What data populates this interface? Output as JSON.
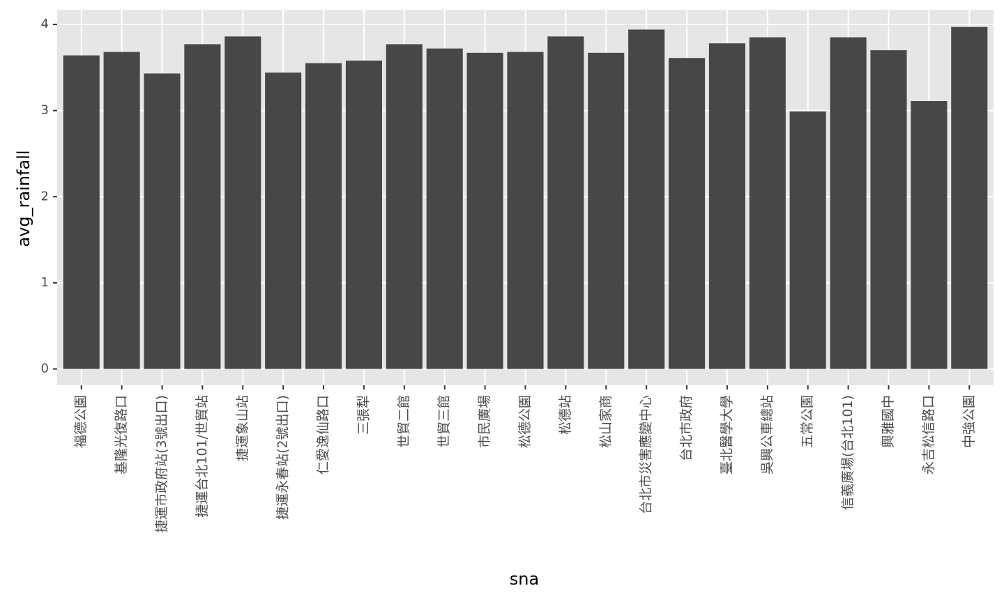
{
  "chart_data": {
    "type": "bar",
    "x_label": "sna",
    "y_label": "avg_rainfall",
    "categories": [
      "福德公園",
      "基隆光復路口",
      "捷運市政府站(3號出口)",
      "捷運台北101/世貿站",
      "捷運象山站",
      "捷運永春站(2號出口)",
      "仁愛逸仙路口",
      "三張犁",
      "世貿二館",
      "世貿三館",
      "市民廣場",
      "松德公園",
      "松德站",
      "松山家商",
      "台北市災害應變中心",
      "台北市政府",
      "臺北醫學大學",
      "吳興公車總站",
      "五常公園",
      "信義廣場(台北101)",
      "興雅國中",
      "永吉松信路口",
      "中強公園"
    ],
    "values": [
      3.64,
      3.68,
      3.43,
      3.77,
      3.86,
      3.44,
      3.55,
      3.58,
      3.77,
      3.72,
      3.67,
      3.68,
      3.86,
      3.67,
      3.94,
      3.61,
      3.78,
      3.85,
      2.99,
      3.85,
      3.7,
      3.11,
      3.97
    ],
    "color": "#474747",
    "ylim": [
      -0.19,
      4.17
    ],
    "yticks": [
      0,
      1,
      2,
      3,
      4
    ],
    "grid": true
  }
}
